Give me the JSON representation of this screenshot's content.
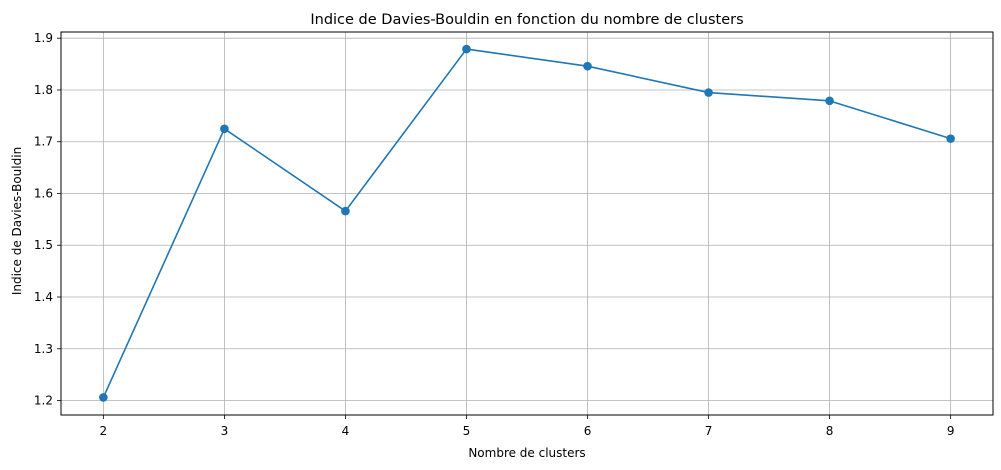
{
  "chart_data": {
    "type": "line",
    "title": "Indice de Davies-Bouldin en fonction du nombre de clusters",
    "xlabel": "Nombre de clusters",
    "ylabel": "Indice de Davies-Bouldin",
    "x": [
      2,
      3,
      4,
      5,
      6,
      7,
      8,
      9
    ],
    "x_tick_labels": [
      "2",
      "3",
      "4",
      "5",
      "6",
      "7",
      "8",
      "9"
    ],
    "y_ticks": [
      1.2,
      1.3,
      1.4,
      1.5,
      1.6,
      1.7,
      1.8,
      1.9
    ],
    "y_tick_labels": [
      "1.2",
      "1.3",
      "1.4",
      "1.5",
      "1.6",
      "1.7",
      "1.8",
      "1.9"
    ],
    "xlim": [
      1.65,
      9.35
    ],
    "ylim": [
      1.172,
      1.912
    ],
    "grid": true,
    "marker": "circle",
    "series": [
      {
        "values": [
          1.206,
          1.725,
          1.566,
          1.879,
          1.846,
          1.795,
          1.779,
          1.706
        ],
        "color": "#1f77b4"
      }
    ]
  }
}
